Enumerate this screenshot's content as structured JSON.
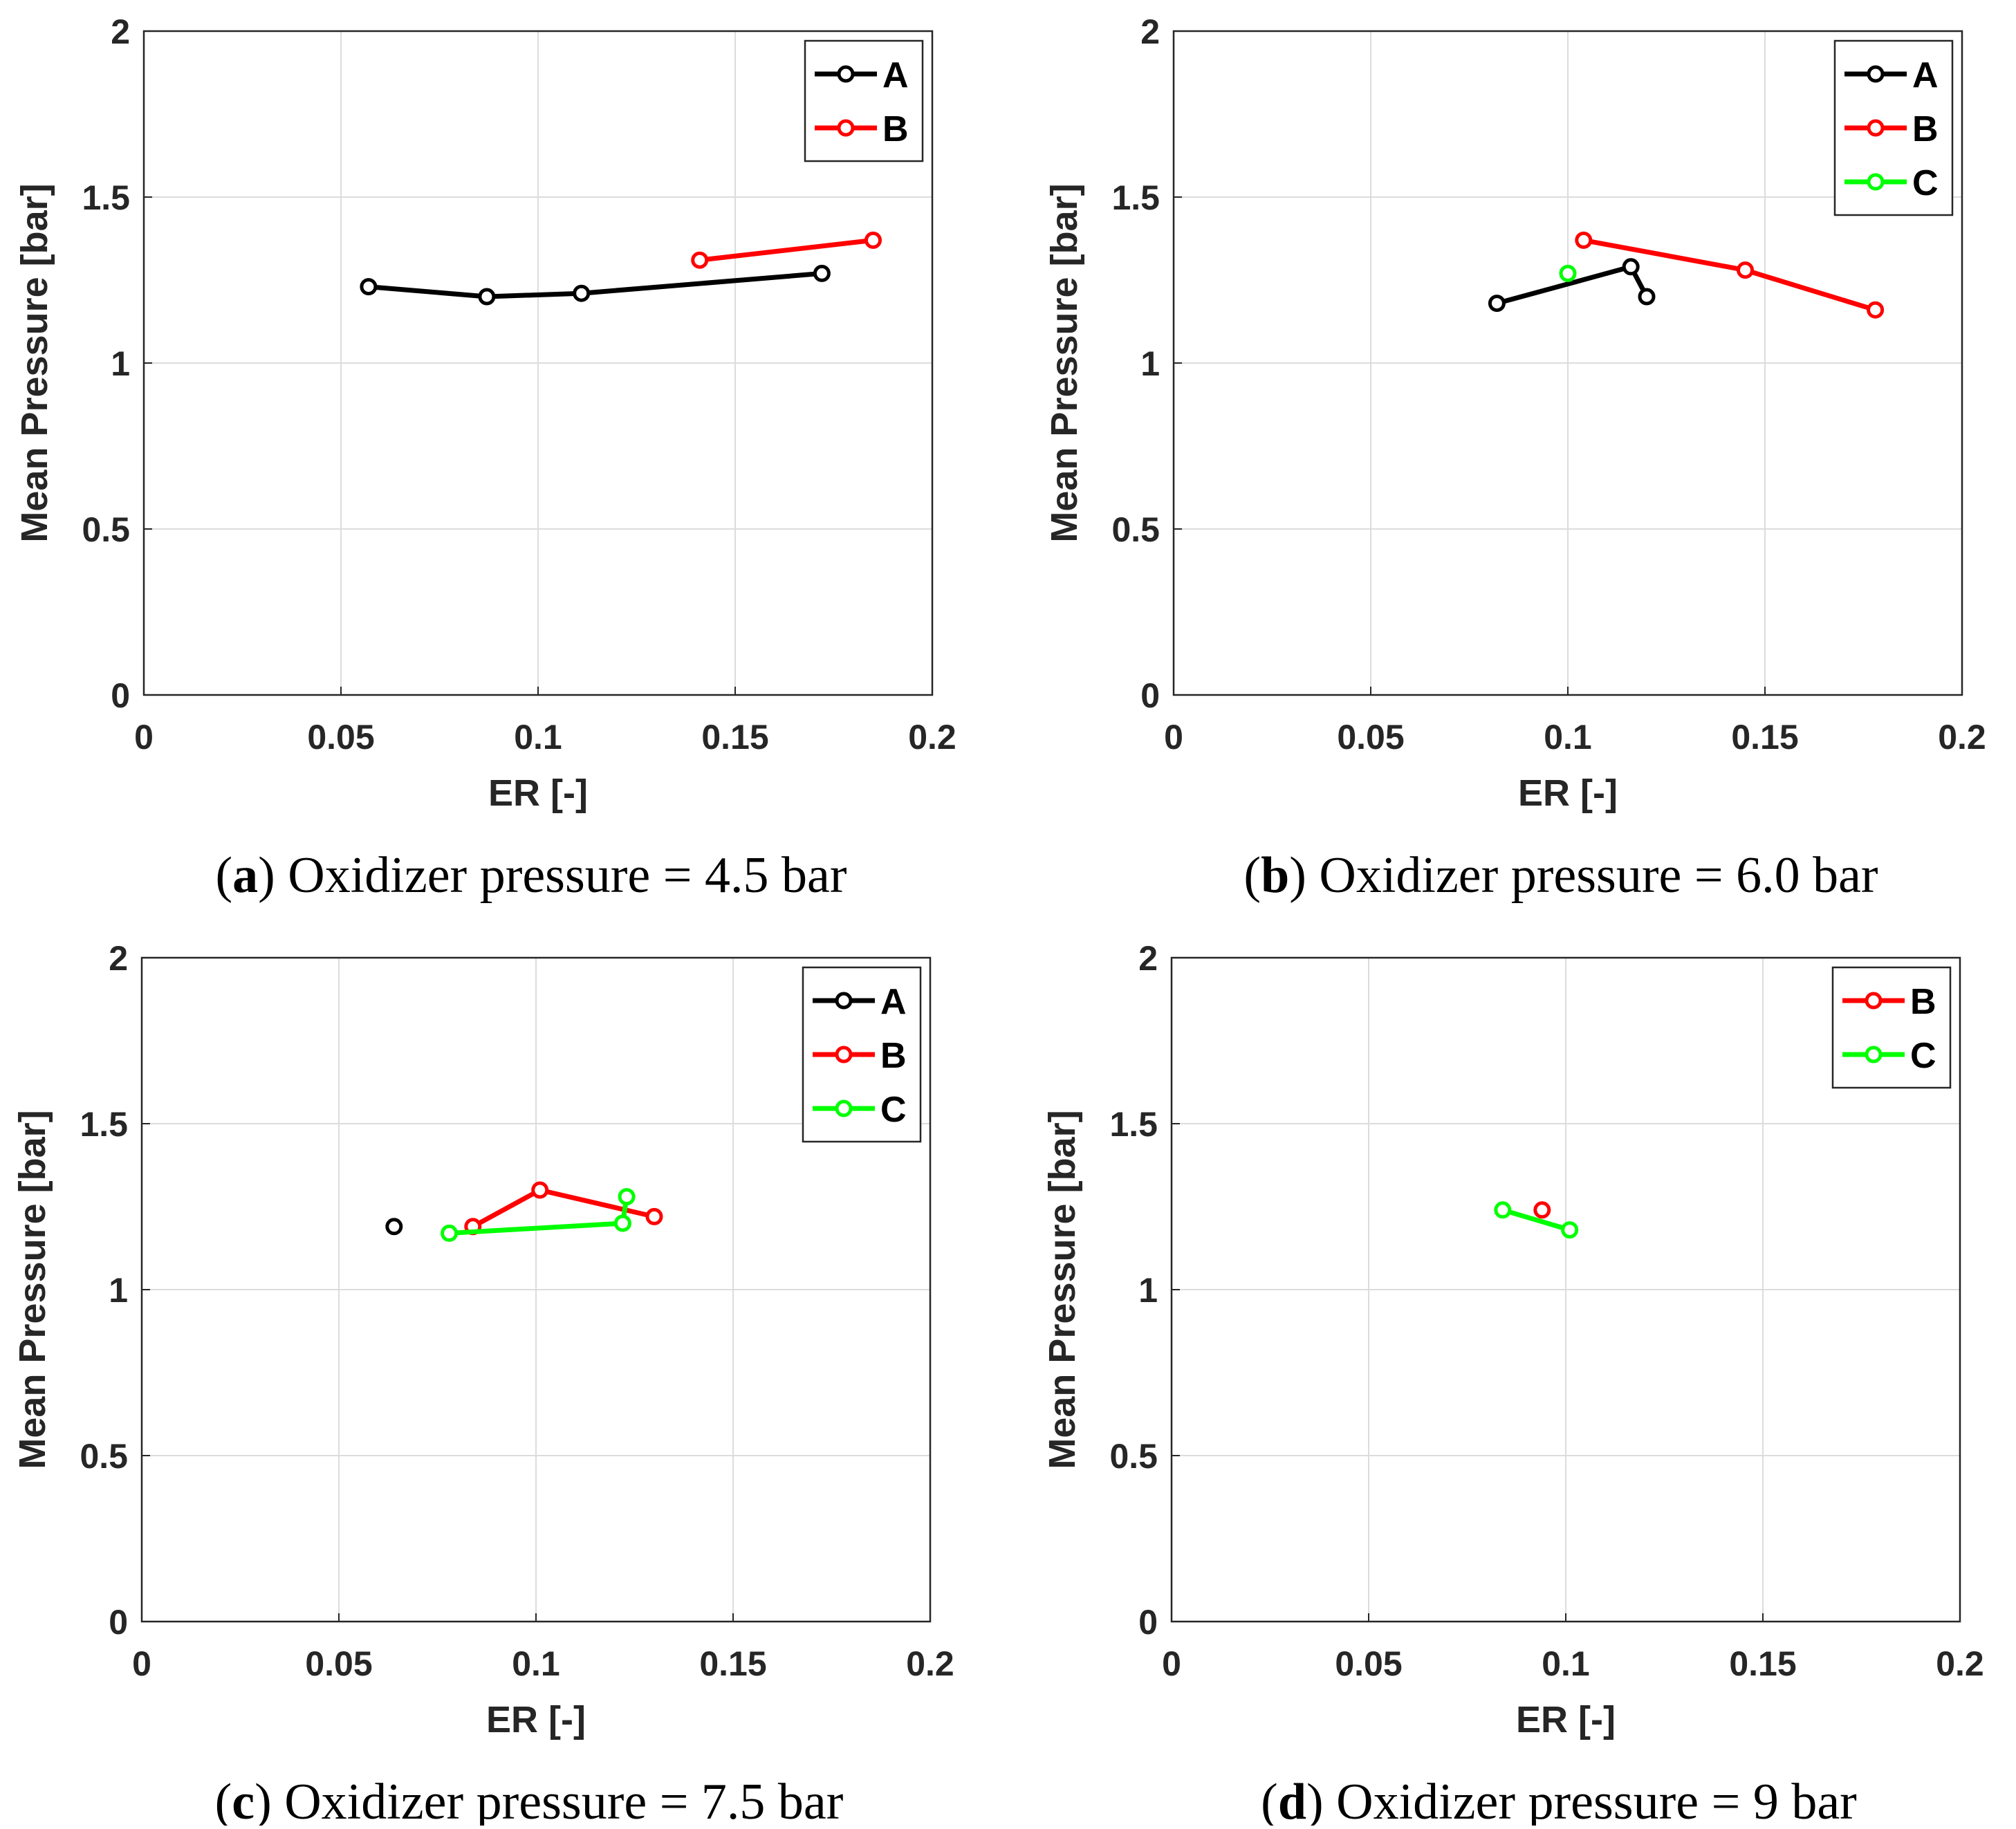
{
  "chart_data": [
    {
      "type": "line",
      "panel": "a",
      "caption_letter": "a",
      "caption_text": "Oxidizer pressure = 4.5 bar",
      "xlabel": "ER [-]",
      "ylabel": "Mean Pressure [bar]",
      "xlim": [
        0,
        0.2
      ],
      "ylim": [
        0,
        2
      ],
      "xticks": [
        "0",
        "0.05",
        "0.1",
        "0.15",
        "0.2"
      ],
      "yticks": [
        "0",
        "0.5",
        "1",
        "1.5",
        "2"
      ],
      "grid": true,
      "legend_position": "top-right",
      "series": [
        {
          "name": "A",
          "color": "#000000",
          "x": [
            0.057,
            0.087,
            0.111,
            0.172
          ],
          "y": [
            1.23,
            1.2,
            1.21,
            1.27
          ]
        },
        {
          "name": "B",
          "color": "#ff0000",
          "x": [
            0.141,
            0.185
          ],
          "y": [
            1.31,
            1.37
          ]
        }
      ]
    },
    {
      "type": "line",
      "panel": "b",
      "caption_letter": "b",
      "caption_text": "Oxidizer pressure = 6.0 bar",
      "xlabel": "ER [-]",
      "ylabel": "Mean Pressure [bar]",
      "xlim": [
        0,
        0.2
      ],
      "ylim": [
        0,
        2
      ],
      "xticks": [
        "0",
        "0.05",
        "0.1",
        "0.15",
        "0.2"
      ],
      "yticks": [
        "0",
        "0.5",
        "1",
        "1.5",
        "2"
      ],
      "grid": true,
      "legend_position": "top-right",
      "series": [
        {
          "name": "A",
          "color": "#000000",
          "x": [
            0.082,
            0.116,
            0.12
          ],
          "y": [
            1.18,
            1.29,
            1.2
          ]
        },
        {
          "name": "B",
          "color": "#ff0000",
          "x": [
            0.104,
            0.145,
            0.178
          ],
          "y": [
            1.37,
            1.28,
            1.16
          ]
        },
        {
          "name": "C",
          "color": "#00ff00",
          "x": [
            0.1
          ],
          "y": [
            1.27
          ]
        }
      ]
    },
    {
      "type": "line",
      "panel": "c",
      "caption_letter": "c",
      "caption_text": "Oxidizer pressure = 7.5 bar",
      "xlabel": "ER [-]",
      "ylabel": "Mean Pressure [bar]",
      "xlim": [
        0,
        0.2
      ],
      "ylim": [
        0,
        2
      ],
      "xticks": [
        "0",
        "0.05",
        "0.1",
        "0.15",
        "0.2"
      ],
      "yticks": [
        "0",
        "0.5",
        "1",
        "1.5",
        "2"
      ],
      "grid": true,
      "legend_position": "top-right",
      "series": [
        {
          "name": "A",
          "color": "#000000",
          "x": [
            0.064
          ],
          "y": [
            1.19
          ]
        },
        {
          "name": "B",
          "color": "#ff0000",
          "x": [
            0.084,
            0.101,
            0.13
          ],
          "y": [
            1.19,
            1.3,
            1.22
          ]
        },
        {
          "name": "C",
          "color": "#00ff00",
          "x": [
            0.078,
            0.122,
            0.123
          ],
          "y": [
            1.17,
            1.2,
            1.28
          ]
        }
      ]
    },
    {
      "type": "line",
      "panel": "d",
      "caption_letter": "d",
      "caption_text": "Oxidizer pressure = 9 bar",
      "xlabel": "ER [-]",
      "ylabel": "Mean Pressure [bar]",
      "xlim": [
        0,
        0.2
      ],
      "ylim": [
        0,
        2
      ],
      "xticks": [
        "0",
        "0.05",
        "0.1",
        "0.15",
        "0.2"
      ],
      "yticks": [
        "0",
        "0.5",
        "1",
        "1.5",
        "2"
      ],
      "grid": true,
      "legend_position": "top-right",
      "series": [
        {
          "name": "B",
          "color": "#ff0000",
          "x": [
            0.094
          ],
          "y": [
            1.24
          ]
        },
        {
          "name": "C",
          "color": "#00ff00",
          "x": [
            0.084,
            0.101
          ],
          "y": [
            1.24,
            1.18
          ]
        }
      ]
    }
  ]
}
